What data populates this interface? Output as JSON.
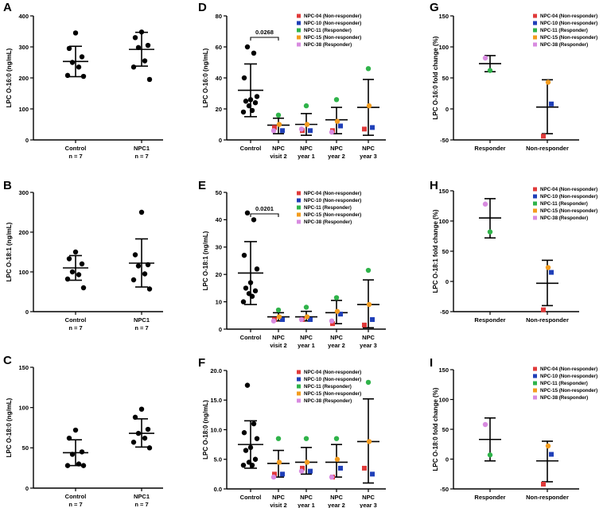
{
  "colors": {
    "NPC-04": "#e03a3a",
    "NPC-10": "#1f3fb8",
    "NPC-11": "#2fb34a",
    "NPC-15": "#f39c1e",
    "NPC-38": "#d88be0",
    "black": "#000000"
  },
  "chart_data": [
    {
      "panel": "A",
      "type": "scatter",
      "ylabel": "LPC O-16:0 (ng/mL)",
      "ylim": [
        0,
        400
      ],
      "yticks": [
        "0",
        "100",
        "200",
        "300",
        "400"
      ],
      "categories": [
        "Control\nn = 7",
        "NPC1\nn = 7"
      ],
      "series": [
        {
          "name": "Control",
          "values": [
            345,
            295,
            268,
            250,
            235,
            208,
            205
          ],
          "mean": 253,
          "sd_low": 204,
          "sd_high": 302
        },
        {
          "name": "NPC1",
          "values": [
            348,
            330,
            305,
            298,
            255,
            235,
            195
          ],
          "mean": 292,
          "sd_low": 238,
          "sd_high": 347
        }
      ]
    },
    {
      "panel": "B",
      "type": "scatter",
      "ylabel": "LPC O-18:1 (ng/mL)",
      "ylim": [
        0,
        300
      ],
      "yticks": [
        "0",
        "100",
        "200",
        "300"
      ],
      "categories": [
        "Control\nn = 7",
        "NPC1\nn = 7"
      ],
      "series": [
        {
          "name": "Control",
          "values": [
            150,
            133,
            120,
            100,
            93,
            82,
            60
          ],
          "mean": 110,
          "sd_low": 79,
          "sd_high": 141
        },
        {
          "name": "NPC1",
          "values": [
            250,
            143,
            118,
            115,
            95,
            80,
            57
          ],
          "mean": 122,
          "sd_low": 62,
          "sd_high": 183
        }
      ]
    },
    {
      "panel": "C",
      "type": "scatter",
      "ylabel": "LPC O-18:0 (ng/mL)",
      "ylim": [
        0,
        150
      ],
      "yticks": [
        "0",
        "50",
        "100",
        "150"
      ],
      "categories": [
        "Control\nn = 7",
        "NPC1\nn = 7"
      ],
      "series": [
        {
          "name": "Control",
          "values": [
            72,
            62,
            45,
            42,
            30,
            28,
            28
          ],
          "mean": 44,
          "sd_low": 28,
          "sd_high": 60
        },
        {
          "name": "NPC1",
          "values": [
            98,
            88,
            73,
            68,
            62,
            57,
            50
          ],
          "mean": 68,
          "sd_low": 51,
          "sd_high": 86
        }
      ]
    },
    {
      "panel": "D",
      "type": "scatter",
      "ylabel": "LPC O-16:0 (ng/mL)",
      "ylim": [
        0,
        80
      ],
      "yticks": [
        "0",
        "20",
        "40",
        "60",
        "80"
      ],
      "categories": [
        "Control",
        "NPC\nvisit 2",
        "NPC\nyear 1",
        "NPC\nyear 2",
        "NPC\nyear 3"
      ],
      "control": {
        "values": [
          60,
          56,
          40,
          28,
          26,
          25,
          24,
          22,
          19,
          18
        ],
        "mean": 32,
        "sd_low": 15,
        "sd_high": 49
      },
      "groups": [
        {
          "mean": 9.5,
          "sd_low": 4,
          "sd_high": 14,
          "points": {
            "NPC-04": 8,
            "NPC-10": 6,
            "NPC-11": 16,
            "NPC-15": 10,
            "NPC-38": 6
          }
        },
        {
          "mean": 10,
          "sd_low": 3,
          "sd_high": 17,
          "points": {
            "NPC-04": 6,
            "NPC-10": 6,
            "NPC-11": 22,
            "NPC-15": 10,
            "NPC-38": 7
          }
        },
        {
          "mean": 13,
          "sd_low": 4,
          "sd_high": 21,
          "points": {
            "NPC-04": 6,
            "NPC-10": 9,
            "NPC-11": 26,
            "NPC-15": 12,
            "NPC-38": 5
          }
        },
        {
          "mean": 21,
          "sd_low": 3,
          "sd_high": 39,
          "points": {
            "NPC-04": 7,
            "NPC-10": 8,
            "NPC-11": 46,
            "NPC-15": 22,
            "NPC-38": null
          }
        }
      ],
      "significance": {
        "label": "0.0268",
        "from": 0,
        "to": 1
      }
    },
    {
      "panel": "E",
      "type": "scatter",
      "ylabel": "LPC O-18:1 (ng/mL)",
      "ylim": [
        0,
        50
      ],
      "yticks": [
        "0",
        "10",
        "20",
        "30",
        "40",
        "50"
      ],
      "categories": [
        "Control",
        "NPC\nvisit 2",
        "NPC\nyear 1",
        "NPC\nyear 2",
        "NPC\nyear 3"
      ],
      "control": {
        "values": [
          42.5,
          40,
          27,
          22,
          17,
          15,
          14,
          13,
          12,
          10
        ],
        "mean": 20.5,
        "sd_low": 9,
        "sd_high": 32
      },
      "groups": [
        {
          "mean": 4.5,
          "sd_low": 3,
          "sd_high": 6,
          "points": {
            "NPC-04": 3.5,
            "NPC-10": 3.5,
            "NPC-11": 7,
            "NPC-15": 4.5,
            "NPC-38": 3
          }
        },
        {
          "mean": 4.5,
          "sd_low": 3,
          "sd_high": 6.5,
          "points": {
            "NPC-04": 3.5,
            "NPC-10": 3.5,
            "NPC-11": 8,
            "NPC-15": 4.5,
            "NPC-38": 3.5
          }
        },
        {
          "mean": 6,
          "sd_low": 2,
          "sd_high": 10.5,
          "points": {
            "NPC-04": 2,
            "NPC-10": 5.5,
            "NPC-11": 11.5,
            "NPC-15": 6.5,
            "NPC-38": 3
          }
        },
        {
          "mean": 9,
          "sd_low": 0.5,
          "sd_high": 18,
          "points": {
            "NPC-04": 1.5,
            "NPC-10": 3.5,
            "NPC-11": 21.5,
            "NPC-15": 9,
            "NPC-38": null
          }
        }
      ],
      "significance": {
        "label": "0.0201",
        "from": 0,
        "to": 1
      }
    },
    {
      "panel": "F",
      "type": "scatter",
      "ylabel": "LPC O-18:0 (ng/mL)",
      "ylim": [
        0,
        20
      ],
      "yticks": [
        "0.0",
        "5.0",
        "10.0",
        "15.0",
        "20.0"
      ],
      "categories": [
        "Control",
        "NPC\nvisit 2",
        "NPC\nyear 1",
        "NPC\nyear 2",
        "NPC\nyear 3"
      ],
      "control": {
        "values": [
          17.5,
          11,
          9.5,
          8.5,
          7,
          6.5,
          5,
          4.5,
          4,
          4
        ],
        "mean": 7.5,
        "sd_low": 3.5,
        "sd_high": 11.5
      },
      "groups": [
        {
          "mean": 4.3,
          "sd_low": 2,
          "sd_high": 6.5,
          "points": {
            "NPC-04": 2.5,
            "NPC-10": 2.5,
            "NPC-11": 8.5,
            "NPC-15": 4.5,
            "NPC-38": 2
          }
        },
        {
          "mean": 4.5,
          "sd_low": 2.5,
          "sd_high": 7,
          "points": {
            "NPC-04": 3.5,
            "NPC-10": 3,
            "NPC-11": 8.5,
            "NPC-15": 4.5,
            "NPC-38": 3
          }
        },
        {
          "mean": 4.5,
          "sd_low": 2,
          "sd_high": 7.5,
          "points": {
            "NPC-04": 2,
            "NPC-10": 3.5,
            "NPC-11": 8.5,
            "NPC-15": 5,
            "NPC-38": 2
          }
        },
        {
          "mean": 8,
          "sd_low": 1,
          "sd_high": 15.2,
          "points": {
            "NPC-04": 3.5,
            "NPC-10": 2.5,
            "NPC-11": 18,
            "NPC-15": 8,
            "NPC-38": null
          }
        }
      ]
    },
    {
      "panel": "G",
      "type": "scatter",
      "ylabel": "LPC O-16:0 fold change (%)",
      "ylim": [
        -50,
        150
      ],
      "yticks": [
        "-50",
        "0",
        "50",
        "100",
        "150"
      ],
      "categories": [
        "Responder",
        "Non-responder"
      ],
      "groups": [
        {
          "mean": 73,
          "sd_low": 60,
          "sd_high": 86,
          "points": {
            "NPC-11": 62,
            "NPC-38": 82
          }
        },
        {
          "mean": 3,
          "sd_low": -40,
          "sd_high": 47,
          "points": {
            "NPC-04": -44,
            "NPC-10": 8,
            "NPC-15": 43
          }
        }
      ]
    },
    {
      "panel": "H",
      "type": "scatter",
      "ylabel": "LPC O-18:1 fold change (%)",
      "ylim": [
        -50,
        150
      ],
      "yticks": [
        "-50",
        "0",
        "50",
        "100",
        "150"
      ],
      "categories": [
        "Responder",
        "Non-responder"
      ],
      "groups": [
        {
          "mean": 105,
          "sd_low": 72,
          "sd_high": 137,
          "points": {
            "NPC-11": 82,
            "NPC-38": 128
          }
        },
        {
          "mean": -3,
          "sd_low": -40,
          "sd_high": 35,
          "points": {
            "NPC-04": -47,
            "NPC-10": 15,
            "NPC-15": 23
          }
        }
      ]
    },
    {
      "panel": "I",
      "type": "scatter",
      "ylabel": "LPC O-18:0 fold change (%)",
      "ylim": [
        -50,
        150
      ],
      "yticks": [
        "-50",
        "0",
        "50",
        "100",
        "150"
      ],
      "categories": [
        "Responder",
        "Non-responder"
      ],
      "groups": [
        {
          "mean": 33,
          "sd_low": -3,
          "sd_high": 69,
          "points": {
            "NPC-11": 7,
            "NPC-38": 58
          }
        },
        {
          "mean": -3,
          "sd_low": -38,
          "sd_high": 30,
          "points": {
            "NPC-04": -42,
            "NPC-10": 8,
            "NPC-15": 22
          }
        }
      ]
    }
  ],
  "legend": [
    {
      "key": "NPC-04",
      "label": "NPC-04 (Non-responder)"
    },
    {
      "key": "NPC-10",
      "label": "NPC-10 (Non-responder)"
    },
    {
      "key": "NPC-11",
      "label": "NPC-11 (Responder)"
    },
    {
      "key": "NPC-15",
      "label": "NPC-15 (Non-responder)"
    },
    {
      "key": "NPC-38",
      "label": "NPC-38 (Responder)"
    }
  ]
}
